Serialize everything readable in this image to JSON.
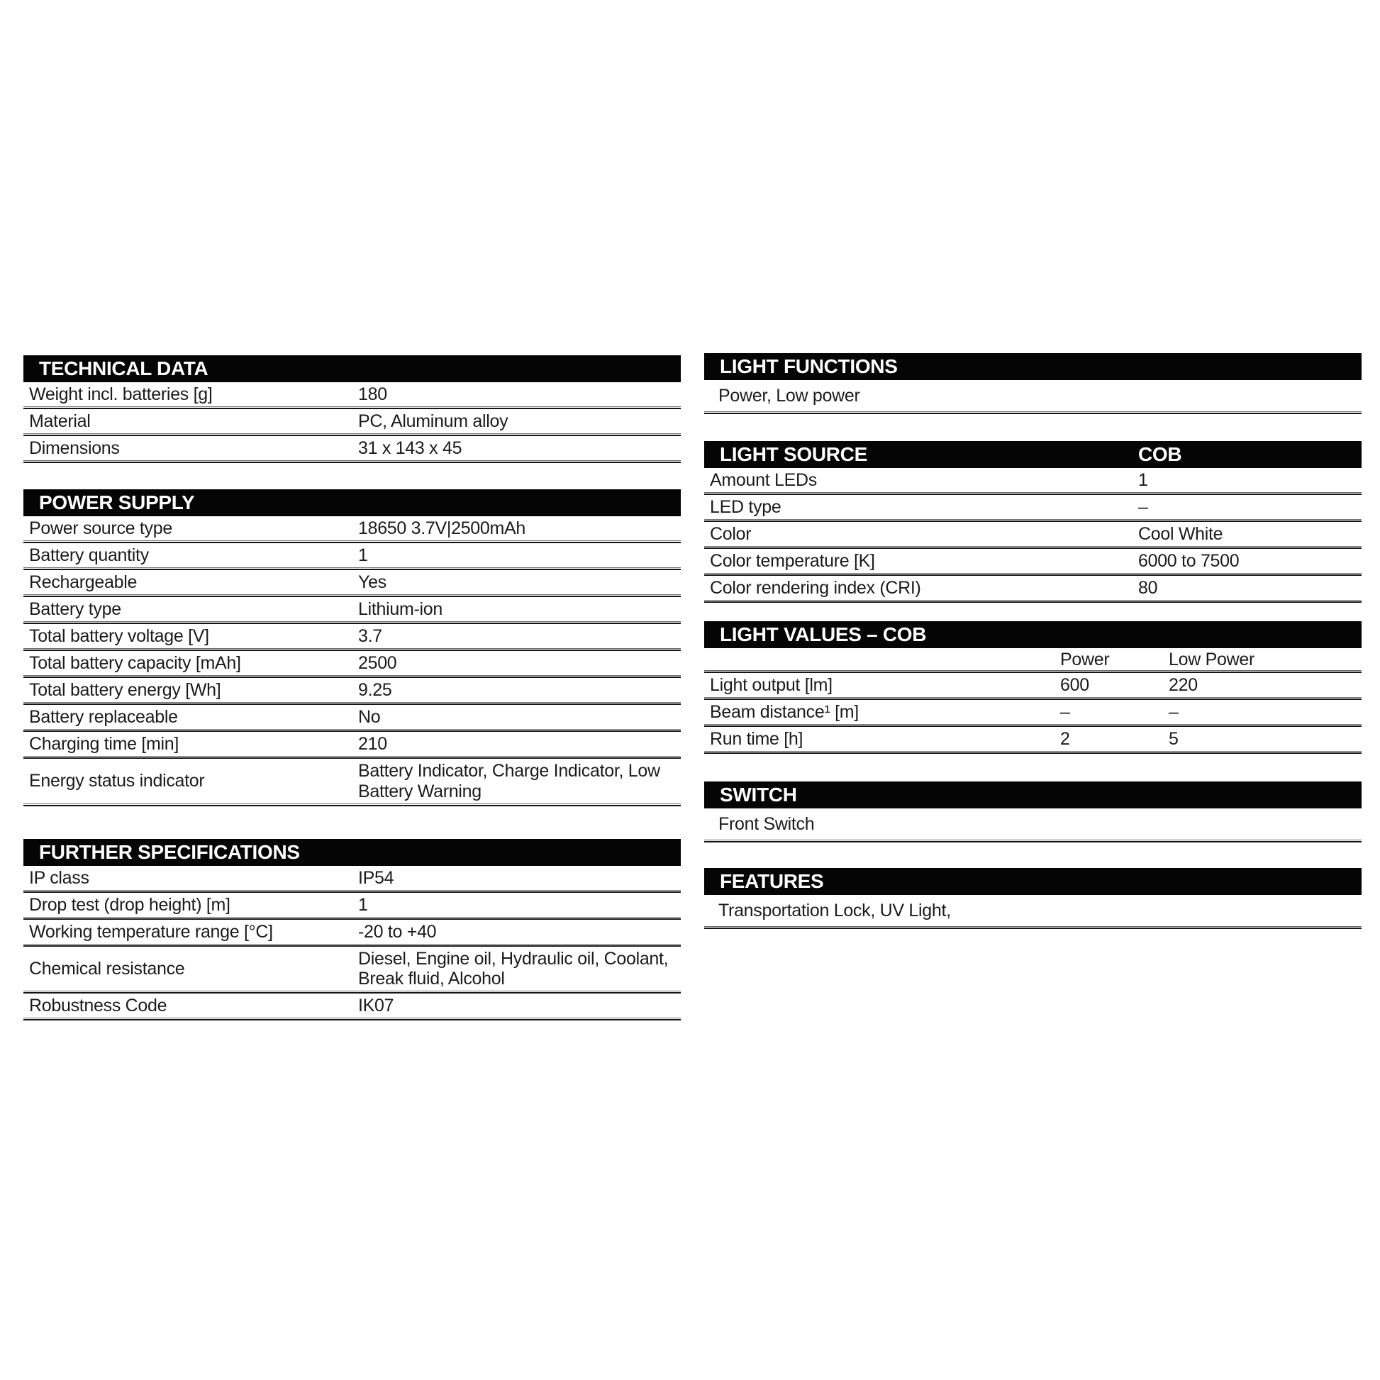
{
  "colors": {
    "bar_background": "#050505",
    "bar_text": "#ffffff",
    "body_text": "#1c1c1c"
  },
  "left": {
    "technical_data": {
      "title": "TECHNICAL DATA",
      "rows": [
        {
          "label": "Weight incl. batteries [g]",
          "value": "180"
        },
        {
          "label": "Material",
          "value": "PC, Aluminum alloy"
        },
        {
          "label": "Dimensions",
          "value": "31 x 143 x 45"
        }
      ]
    },
    "power_supply": {
      "title": "POWER SUPPLY",
      "rows": [
        {
          "label": "Power source type",
          "value": "18650 3.7V|2500mAh"
        },
        {
          "label": "Battery quantity",
          "value": "1"
        },
        {
          "label": "Rechargeable",
          "value": "Yes"
        },
        {
          "label": "Battery type",
          "value": "Lithium-ion"
        },
        {
          "label": "Total battery voltage [V]",
          "value": "3.7"
        },
        {
          "label": "Total battery capacity [mAh]",
          "value": "2500"
        },
        {
          "label": "Total battery energy [Wh]",
          "value": "9.25"
        },
        {
          "label": "Battery replaceable",
          "value": "No"
        },
        {
          "label": "Charging time [min]",
          "value": "210"
        },
        {
          "label": "Energy status indicator",
          "value": "Battery Indicator, Charge Indicator, Low Battery Warning"
        }
      ]
    },
    "further_specifications": {
      "title": "FURTHER SPECIFICATIONS",
      "rows": [
        {
          "label": "IP class",
          "value": "IP54"
        },
        {
          "label": "Drop test (drop height) [m]",
          "value": "1"
        },
        {
          "label": "Working temperature range [°C]",
          "value": "-20 to +40"
        },
        {
          "label": "Chemical resistance",
          "value": "Diesel, Engine oil, Hydraulic oil, Coolant, Break fluid, Alcohol"
        },
        {
          "label": "Robustness Code",
          "value": "IK07"
        }
      ]
    }
  },
  "right": {
    "light_functions": {
      "title": "LIGHT FUNCTIONS",
      "text": "Power, Low power"
    },
    "light_source": {
      "title": "LIGHT SOURCE",
      "column_header": "COB",
      "rows": [
        {
          "label": "Amount LEDs",
          "value": "1"
        },
        {
          "label": "LED type",
          "value": "–"
        },
        {
          "label": "Color",
          "value": "Cool White"
        },
        {
          "label": "Color temperature [K]",
          "value": "6000 to 7500"
        },
        {
          "label": "Color rendering index (CRI)",
          "value": "80"
        }
      ]
    },
    "light_values_cob": {
      "title": "LIGHT VALUES – COB",
      "columns": {
        "col1": "Power",
        "col2": "Low Power"
      },
      "rows": [
        {
          "label": "Light output [lm]",
          "power": "600",
          "low_power": "220"
        },
        {
          "label": "Beam distance¹ [m]",
          "power": "–",
          "low_power": "–"
        },
        {
          "label": "Run time [h]",
          "power": "2",
          "low_power": "5"
        }
      ]
    },
    "switch": {
      "title": "SWITCH",
      "text": "Front Switch"
    },
    "features": {
      "title": "FEATURES",
      "text": "Transportation Lock, UV Light,"
    }
  }
}
